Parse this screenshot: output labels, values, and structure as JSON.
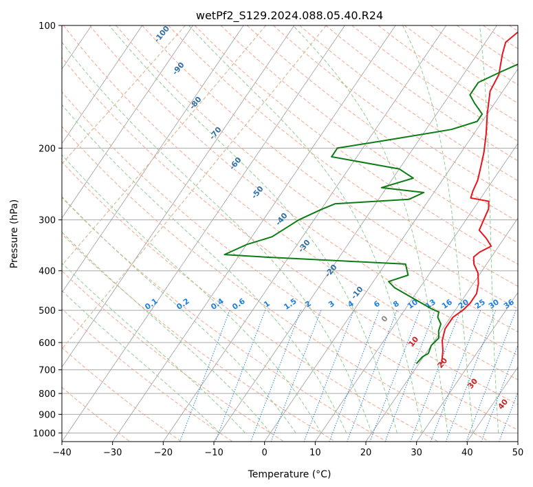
{
  "chart_data": {
    "type": "line",
    "title": "wetPf2_S129.2024.088.05.40.R24",
    "xlabel": "Temperature (°C)",
    "ylabel": "Pressure (hPa)",
    "xlim": [
      -40,
      50
    ],
    "ylim": [
      1050,
      100
    ],
    "yscale": "log",
    "grid": true,
    "x_ticks": [
      "−40",
      "−30",
      "−20",
      "−10",
      "0",
      "10",
      "20",
      "30",
      "40",
      "50"
    ],
    "y_ticks": [
      "100",
      "200",
      "300",
      "400",
      "500",
      "600",
      "700",
      "800",
      "900",
      "1000"
    ],
    "series": [
      {
        "role": "temperature",
        "color": "#e8131d",
        "points": [
          [
            24.5,
            676
          ],
          [
            23,
            628
          ],
          [
            21.5,
            593
          ],
          [
            20.5,
            555
          ],
          [
            20.5,
            520
          ],
          [
            21.5,
            500
          ],
          [
            22,
            480
          ],
          [
            22,
            455
          ],
          [
            21,
            430
          ],
          [
            19.5,
            405
          ],
          [
            17.5,
            385
          ],
          [
            16.5,
            370
          ],
          [
            17,
            360
          ],
          [
            18.5,
            348
          ],
          [
            16.5,
            333
          ],
          [
            14,
            318
          ],
          [
            13.5,
            300
          ],
          [
            13,
            282
          ],
          [
            12,
            270
          ],
          [
            8,
            265
          ],
          [
            7.5,
            255
          ],
          [
            7,
            240
          ],
          [
            6,
            225
          ],
          [
            4.5,
            205
          ],
          [
            2.5,
            185
          ],
          [
            0,
            165
          ],
          [
            -2.5,
            145
          ],
          [
            -3,
            132
          ],
          [
            -5,
            118
          ],
          [
            -6,
            110
          ],
          [
            -5,
            104
          ],
          [
            -3,
            100
          ]
        ]
      },
      {
        "role": "dewpoint",
        "color": "#0a7c14",
        "points": [
          [
            19.5,
            676
          ],
          [
            19.8,
            650
          ],
          [
            20.5,
            638
          ],
          [
            20,
            610
          ],
          [
            20.5,
            585
          ],
          [
            19.5,
            562
          ],
          [
            19,
            540
          ],
          [
            17.5,
            520
          ],
          [
            17,
            505
          ],
          [
            15,
            495
          ],
          [
            5,
            440
          ],
          [
            3,
            425
          ],
          [
            6,
            410
          ],
          [
            4,
            385
          ],
          [
            -25,
            370
          ],
          [
            -33,
            365
          ],
          [
            -30,
            345
          ],
          [
            -26,
            330
          ],
          [
            -23,
            300
          ],
          [
            -20,
            283
          ],
          [
            -18,
            274
          ],
          [
            -4,
            267
          ],
          [
            -2,
            257
          ],
          [
            -11,
            250
          ],
          [
            -6,
            237
          ],
          [
            -10,
            225
          ],
          [
            -25,
            210
          ],
          [
            -25,
            200
          ],
          [
            -17,
            192
          ],
          [
            -5,
            180
          ],
          [
            -1,
            172
          ],
          [
            -1,
            165
          ],
          [
            -4,
            155
          ],
          [
            -6,
            148
          ],
          [
            -6,
            138
          ],
          [
            -3,
            130
          ],
          [
            0,
            123
          ],
          [
            -1,
            116
          ],
          [
            0,
            108
          ],
          [
            -3,
            100
          ]
        ]
      }
    ],
    "dry_adiabat_labels": [
      "-100",
      "-90",
      "-80",
      "-70",
      "-60",
      "-50",
      "-40",
      "-30",
      "-20",
      "-10"
    ],
    "mixing_ratio_labels": [
      "0.1",
      "0.2",
      "0.4",
      "0.6",
      "1",
      "1.5",
      "2",
      "3",
      "4",
      "6",
      "8",
      "10",
      "13",
      "16",
      "20",
      "25",
      "30",
      "36"
    ],
    "moist_adiabat_labels": [
      "0",
      "10",
      "20",
      "30",
      "40"
    ],
    "colors": {
      "isotherm": "#9c9c9c",
      "isobar": "#a8a8a8",
      "dry_adiabat": "#f5a58c",
      "moist_adiabat": "#8fcc8f",
      "mixing_ratio": "#1e7fe0",
      "dry_label": "#2e6fa8",
      "moist_label": "#cc2222",
      "zero_label": "#888888",
      "curve_tan": "#d9b99a"
    }
  }
}
